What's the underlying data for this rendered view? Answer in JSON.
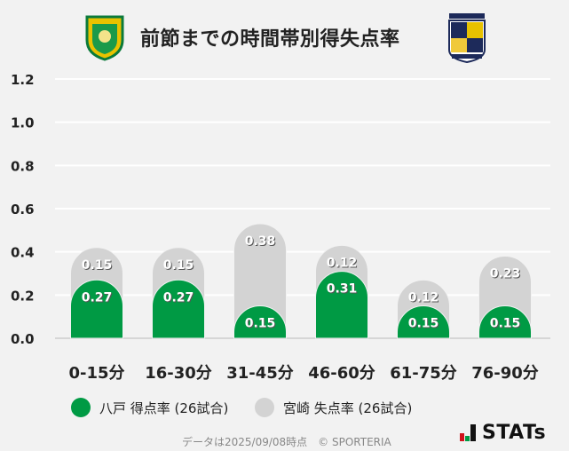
{
  "header": {
    "title": "前節までの時間帯別得失点率",
    "home_logo": "hachinohe-crest",
    "away_logo": "miyazaki-crest"
  },
  "colors": {
    "home": "#009a44",
    "away": "#d3d3d3",
    "grid": "#ffffff",
    "background": "#f2f2f2"
  },
  "chart_data": {
    "type": "bar",
    "stacked": true,
    "categories": [
      "0-15分",
      "16-30分",
      "31-45分",
      "46-60分",
      "61-75分",
      "76-90分"
    ],
    "series": [
      {
        "name": "八戸 得点率 (26試合)",
        "values": [
          0.27,
          0.27,
          0.15,
          0.31,
          0.15,
          0.15
        ],
        "labels": [
          "0.27",
          "0.27",
          "0.15",
          "0.31",
          "0.15",
          "0.15"
        ]
      },
      {
        "name": "宮崎 失点率 (26試合)",
        "values": [
          0.15,
          0.15,
          0.38,
          0.12,
          0.12,
          0.23
        ],
        "labels": [
          "0.15",
          "0.15",
          "0.38",
          "0.12",
          "0.12",
          "0.23"
        ]
      }
    ],
    "ylim": [
      0,
      1.2
    ],
    "yticks": [
      "0.0",
      "0.2",
      "0.4",
      "0.6",
      "0.8",
      "1.0",
      "1.2"
    ],
    "grid": true,
    "legend": "bottom"
  },
  "footer": {
    "note": "データは2025/09/08時点　© SPORTERIA",
    "brand": "STATs"
  }
}
